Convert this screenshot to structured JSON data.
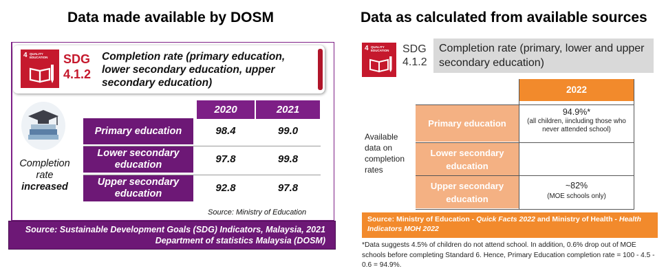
{
  "left": {
    "title": "Data made available by DOSM",
    "sdg_tile_number": "4",
    "sdg_tile_caption": "QUALITY EDUCATION",
    "sdg_code": "SDG 4.1.2",
    "indicator": "Completion rate (primary education, lower secondary education, upper secondary education)",
    "completion_label": "Completion rate",
    "completion_label_emph": "increased",
    "columns": [
      "2020",
      "2021"
    ],
    "rows": [
      {
        "label": "Primary education",
        "values": [
          "98.4",
          "99.0"
        ]
      },
      {
        "label": "Lower secondary education",
        "values": [
          "97.8",
          "99.8"
        ]
      },
      {
        "label": "Upper secondary education",
        "values": [
          "92.8",
          "97.8"
        ]
      }
    ],
    "table_source": "Source: Ministry of Education",
    "footer_line1": "Source: Sustainable Development Goals (SDG) Indicators, Malaysia, 2021",
    "footer_line2": "Department of statistics Malaysia (DOSM)",
    "icon": "graduation-books-icon"
  },
  "right": {
    "title": "Data as calculated from available sources",
    "sdg_tile_number": "4",
    "sdg_tile_caption": "QUALITY EDUCATION",
    "sdg_code_line1": "SDG",
    "sdg_code_line2": "4.1.2",
    "indicator": "Completion rate (primary, lower and upper secondary education)",
    "year_header": "2022",
    "side_label": "Available data on completion rates",
    "rows": [
      {
        "label": "Primary education",
        "value": "94.9%*",
        "note": "(all children, iincluding those who never attended school)"
      },
      {
        "label": "Lower secondary education",
        "value": "",
        "note": ""
      },
      {
        "label": "Upper secondary education",
        "value": "~82%",
        "note": "(MOE schools only)"
      }
    ],
    "source_prefix": "Source: Ministry of Education - ",
    "source_em1": "Quick Facts 2022",
    "source_mid": " and Ministry of Health - ",
    "source_em2": "Health Indicators MOH 2022",
    "footnote": "*Data suggests 4.5% of children do not attend school. In addition, 0.6% drop out of MOE schools before completing Standard 6. Hence, Primary Education completion rate = 100 - 4.5 - 0.6 = 94.9%."
  },
  "colors": {
    "purple": "#7d1f86",
    "sdg_red": "#c5192d",
    "orange": "#f28a2c",
    "light_orange": "#f4b183"
  }
}
